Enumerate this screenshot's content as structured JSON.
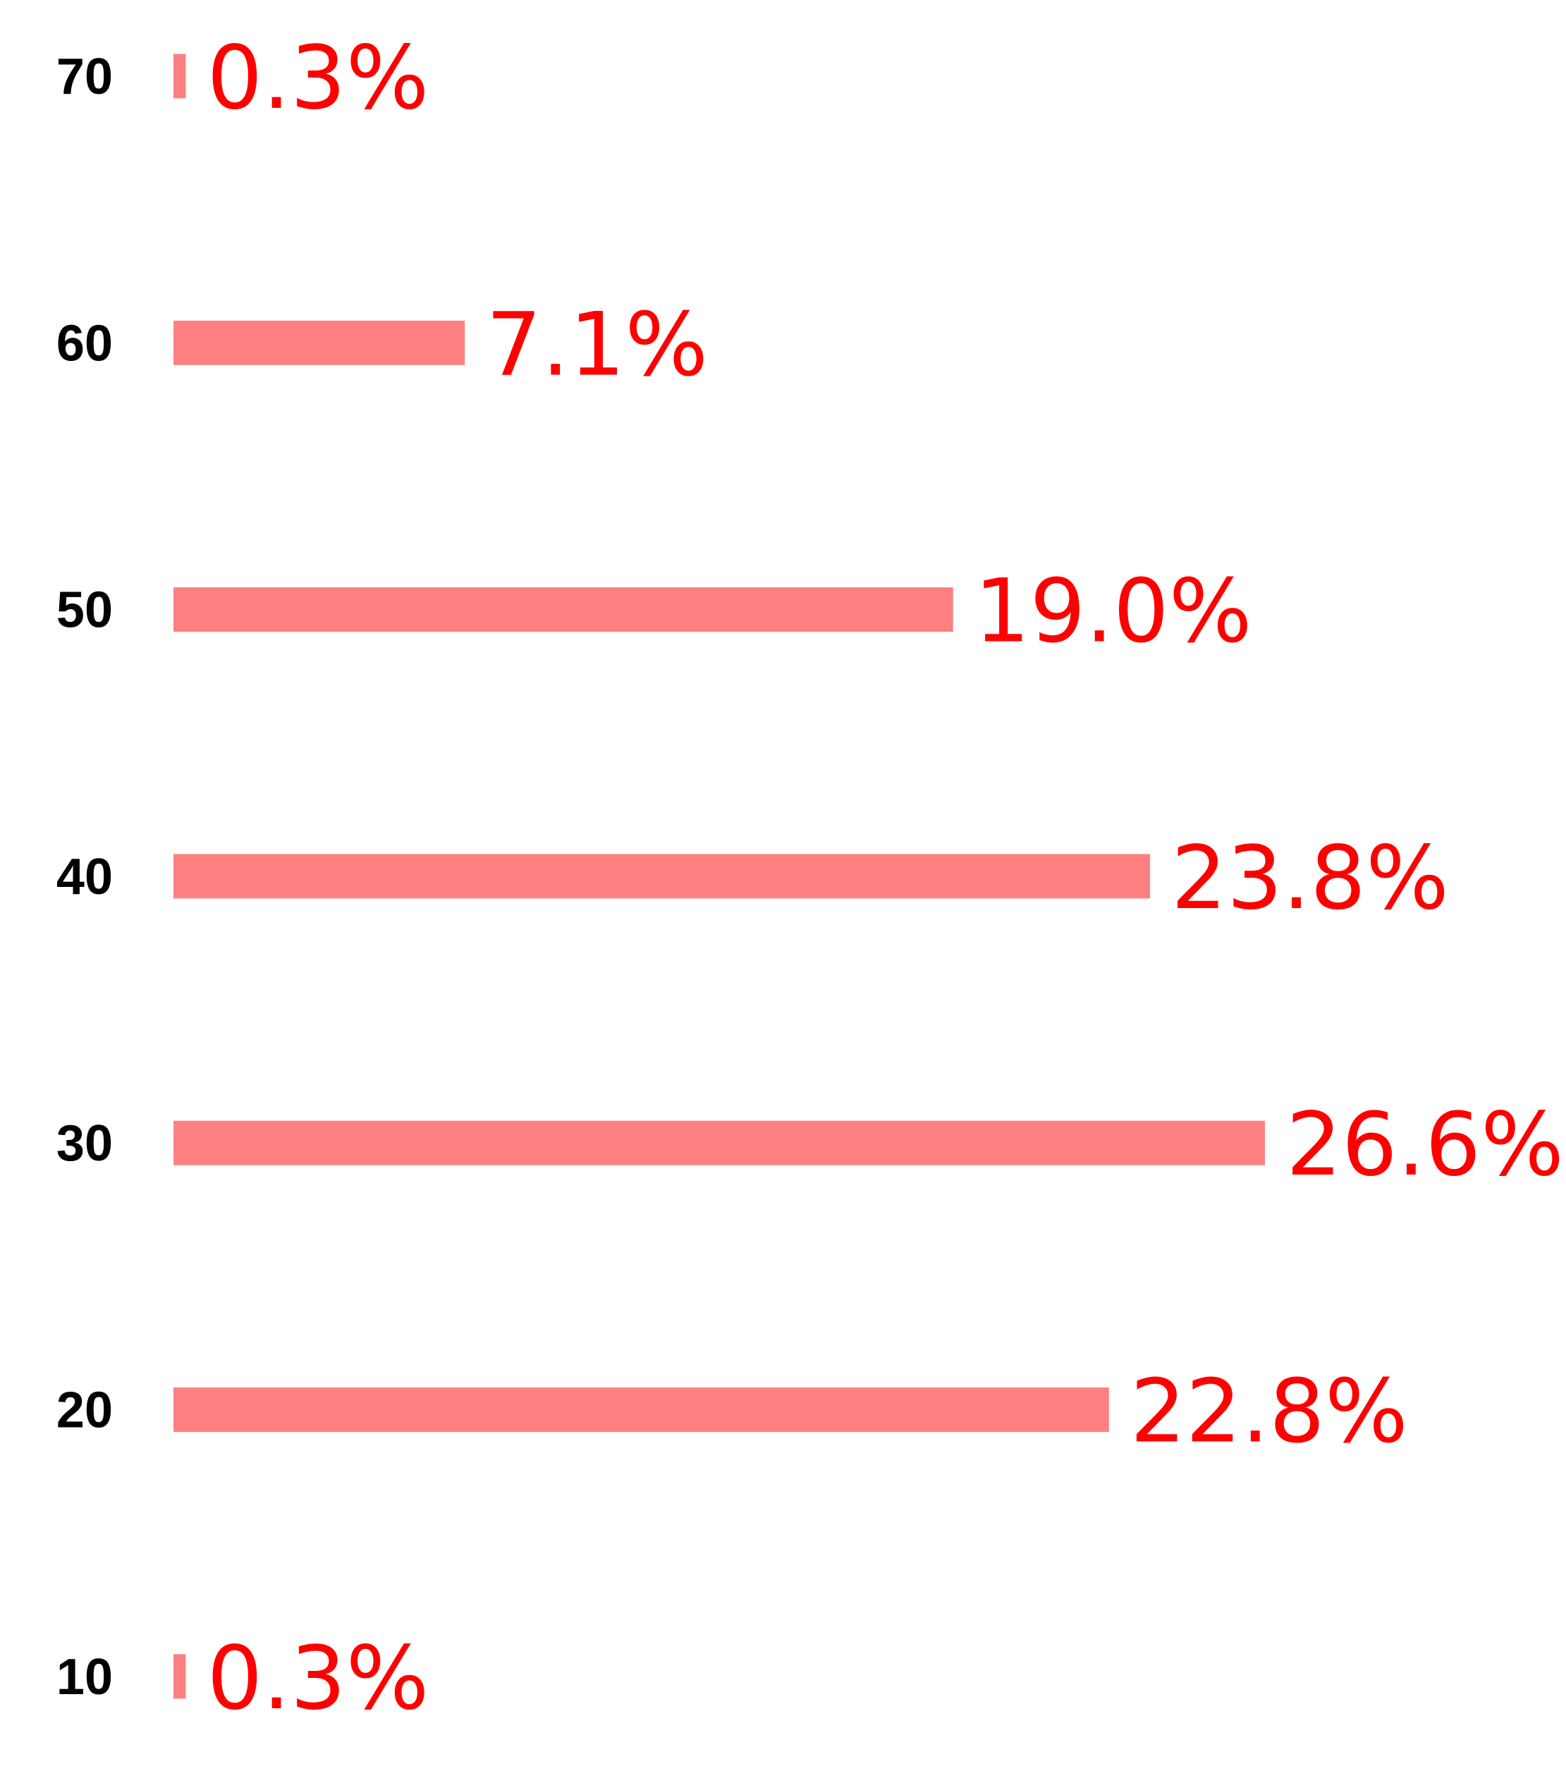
{
  "chart_data": {
    "type": "bar",
    "orientation": "horizontal",
    "categories": [
      "70",
      "60",
      "50",
      "40",
      "30",
      "20",
      "10"
    ],
    "values": [
      0.3,
      7.1,
      19.0,
      23.8,
      26.6,
      22.8,
      0.3
    ],
    "data_labels": [
      "0.3%",
      "7.1%",
      "19.0%",
      "23.8%",
      "26.6%",
      "22.8%",
      "0.3%"
    ],
    "unit": "%",
    "xlim": [
      0,
      26.6
    ],
    "grid": false,
    "legend": "none",
    "bar_color": "#ff8080",
    "label_color": "#ff0000",
    "category_color": "#000000"
  }
}
